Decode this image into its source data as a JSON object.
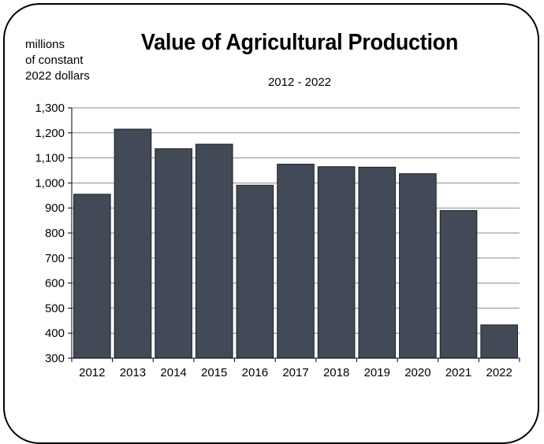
{
  "chart_data": {
    "type": "bar",
    "title": "Value of Agricultural Production",
    "subtitle": "2012 - 2022",
    "ylabel_lines": [
      "millions",
      "of constant",
      "2022 dollars"
    ],
    "xlabel": "",
    "categories": [
      "2012",
      "2013",
      "2014",
      "2015",
      "2016",
      "2017",
      "2018",
      "2019",
      "2020",
      "2021",
      "2022"
    ],
    "values": [
      955,
      1215,
      1137,
      1155,
      991,
      1075,
      1065,
      1063,
      1037,
      890,
      433
    ],
    "ylim": [
      300,
      1300
    ],
    "yticks": [
      300,
      400,
      500,
      600,
      700,
      800,
      900,
      1000,
      1100,
      1200,
      1300
    ],
    "ytick_labels": [
      "300",
      "400",
      "500",
      "600",
      "700",
      "800",
      "900",
      "1,000",
      "1,100",
      "1,200",
      "1,300"
    ],
    "grid": true,
    "legend": "none",
    "bar_color": "#424957",
    "grid_color": "#8c8c8c"
  }
}
